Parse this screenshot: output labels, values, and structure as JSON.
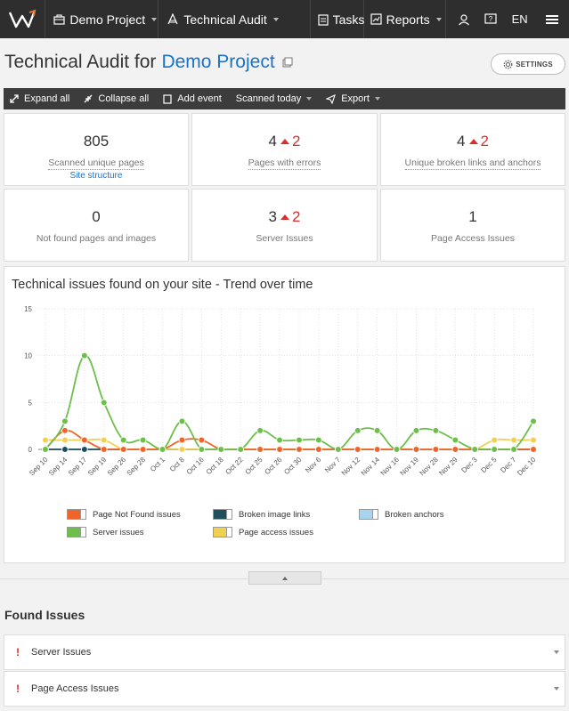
{
  "nav": {
    "project": "Demo Project",
    "module": "Technical Audit",
    "tasks": "Tasks",
    "reports": "Reports",
    "lang": "EN"
  },
  "header": {
    "title_prefix": "Technical Audit for",
    "project_link": "Demo Project",
    "settings_label": "SETTINGS"
  },
  "toolbar": {
    "expand_all": "Expand all",
    "collapse_all": "Collapse all",
    "add_event": "Add event",
    "scanned": "Scanned today",
    "export": "Export"
  },
  "cards": [
    {
      "value": "805",
      "delta": "",
      "label": "Scanned unique pages",
      "sub": "Site structure"
    },
    {
      "value": "4",
      "delta": "2",
      "label": "Pages with errors",
      "sub": ""
    },
    {
      "value": "4",
      "delta": "2",
      "label": "Unique broken links and anchors",
      "sub": ""
    },
    {
      "value": "0",
      "delta": "",
      "label": "Not found pages and images",
      "sub": ""
    },
    {
      "value": "3",
      "delta": "2",
      "label": "Server Issues",
      "sub": ""
    },
    {
      "value": "1",
      "delta": "",
      "label": "Page Access Issues",
      "sub": ""
    }
  ],
  "chart_data": {
    "type": "line",
    "title": "Technical issues found on your site - Trend over time",
    "ylim": [
      0,
      15
    ],
    "yticks": [
      0,
      5,
      10,
      15
    ],
    "grid": true,
    "legend_position": "bottom",
    "categories": [
      "Sep 10",
      "Sep 14",
      "Sep 17",
      "Sep 19",
      "Sep 26",
      "Sep 28",
      "Oct 1",
      "Oct 8",
      "Oct 16",
      "Oct 18",
      "Oct 22",
      "Oct 25",
      "Oct 26",
      "Oct 30",
      "Nov 6",
      "Nov 7",
      "Nov 12",
      "Nov 14",
      "Nov 16",
      "Nov 19",
      "Nov 28",
      "Nov 29",
      "Dec 3",
      "Dec 5",
      "Dec 7",
      "Dec 10"
    ],
    "series": [
      {
        "name": "Page Not Found issues",
        "color": "#f0642a",
        "marker": "circle",
        "values": [
          0,
          2,
          1,
          0,
          0,
          0,
          0,
          1,
          1,
          0,
          0,
          0,
          0,
          0,
          0,
          0,
          0,
          0,
          0,
          0,
          0,
          0,
          0,
          0,
          0,
          0
        ]
      },
      {
        "name": "Broken image links",
        "color": "#1f4e5f",
        "marker": "circle",
        "values": [
          0,
          0,
          0,
          0,
          0,
          0,
          0,
          0,
          0,
          0,
          0,
          0,
          0,
          0,
          0,
          0,
          0,
          0,
          0,
          0,
          0,
          0,
          0,
          0,
          0,
          0
        ]
      },
      {
        "name": "Broken anchors",
        "color": "#a8d4f0",
        "marker": "circle",
        "values": [
          0,
          0,
          0,
          0,
          0,
          0,
          0,
          0,
          0,
          0,
          0,
          0,
          0,
          0,
          0,
          0,
          0,
          0,
          0,
          0,
          0,
          0,
          0,
          0,
          0,
          0
        ]
      },
      {
        "name": "Server issues",
        "color": "#6cbf4a",
        "marker": "circle",
        "values": [
          0,
          3,
          10,
          5,
          1,
          1,
          0,
          3,
          0,
          0,
          0,
          2,
          1,
          1,
          1,
          0,
          2,
          2,
          0,
          2,
          2,
          1,
          0,
          0,
          0,
          3
        ]
      },
      {
        "name": "Page access issues",
        "color": "#f0d052",
        "marker": "circle",
        "values": [
          1,
          1,
          1,
          1,
          0,
          0,
          0,
          0,
          0,
          0,
          0,
          0,
          0,
          0,
          0,
          0,
          0,
          0,
          0,
          0,
          0,
          0,
          0,
          1,
          1,
          1
        ]
      }
    ]
  },
  "found_issues": {
    "title": "Found Issues",
    "items": [
      {
        "mark": "!",
        "label": "Server Issues"
      },
      {
        "mark": "!",
        "label": "Page Access Issues"
      }
    ]
  }
}
